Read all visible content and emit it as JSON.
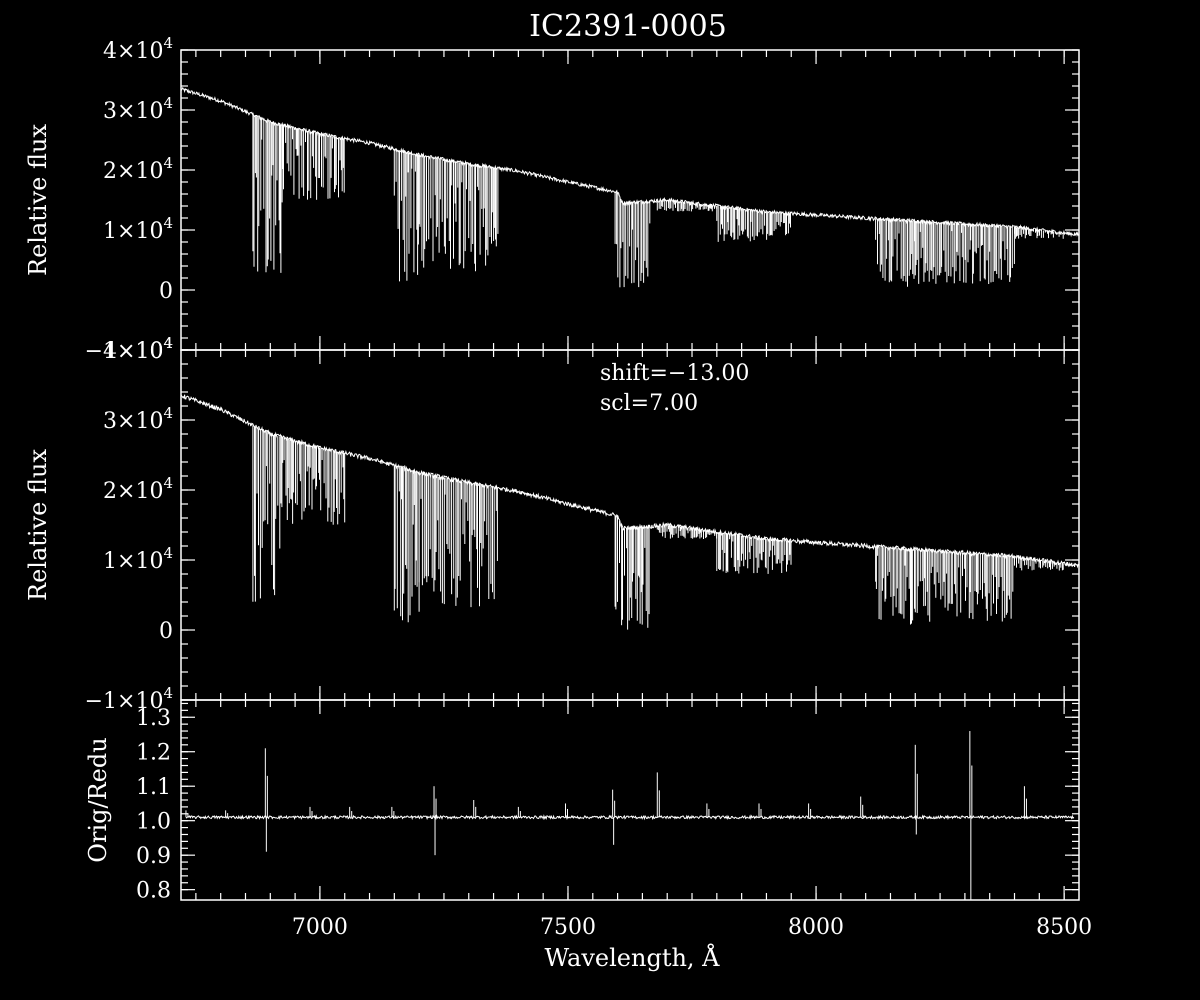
{
  "title": "IC2391-0005",
  "x_axis": {
    "label": "Wavelength, Å",
    "range": [
      6720,
      8530
    ],
    "ticks": [
      7000,
      7500,
      8000,
      8500
    ],
    "tick_labels": [
      "7000",
      "7500",
      "8000",
      "8500"
    ]
  },
  "panels": [
    {
      "id": "original",
      "ylabel": "Relative flux",
      "ylim": [
        -10000,
        40000
      ],
      "yticks": [
        -10000,
        0,
        10000,
        20000,
        30000,
        40000
      ],
      "ytick_mantissa": [
        "−1",
        "0",
        "1",
        "2",
        "3",
        "4"
      ],
      "ytick_exp": [
        "4",
        "",
        "4",
        "4",
        "4",
        "4"
      ]
    },
    {
      "id": "reduced",
      "ylabel": "Relative flux",
      "ylim": [
        -10000,
        40000
      ],
      "yticks": [
        -10000,
        0,
        10000,
        20000,
        30000,
        40000
      ],
      "ytick_mantissa": [
        "−1",
        "0",
        "1",
        "2",
        "3",
        "4"
      ],
      "ytick_exp": [
        "4",
        "",
        "4",
        "4",
        "4",
        "4"
      ],
      "annotations": [
        "shift=−13.00",
        "scl=7.00"
      ]
    },
    {
      "id": "ratio",
      "ylabel": "Orig/Redu",
      "ylim": [
        0.77,
        1.35
      ],
      "yticks": [
        0.8,
        0.9,
        1.0,
        1.1,
        1.2,
        1.3
      ],
      "ytick_labels": [
        "0.8",
        "0.9",
        "1.0",
        "1.1",
        "1.2",
        "1.3"
      ]
    }
  ],
  "chart_data": {
    "type": "line",
    "title": "IC2391-0005",
    "xlabel": "Wavelength, Å",
    "xlim": [
      6720,
      8530
    ],
    "series": [
      {
        "name": "",
        "panel": "original",
        "continuum": {
          "x": [
            6720,
            6800,
            6900,
            7000,
            7100,
            7200,
            7300,
            7400,
            7500,
            7600,
            7610,
            7700,
            7800,
            7900,
            8000,
            8100,
            8200,
            8300,
            8400,
            8500,
            8530
          ],
          "y": [
            33500,
            31500,
            28000,
            26000,
            24500,
            22500,
            21000,
            19800,
            18000,
            16300,
            14500,
            15000,
            14000,
            13000,
            12500,
            12000,
            11500,
            11000,
            10500,
            9500,
            9200
          ]
        },
        "absorption_bands": [
          {
            "start": 6865,
            "end": 6925,
            "min_y": 1000
          },
          {
            "start": 6925,
            "end": 7050,
            "min_y": 15000
          },
          {
            "start": 7150,
            "end": 7200,
            "min_y": 1000
          },
          {
            "start": 7200,
            "end": 7360,
            "min_y": 3000
          },
          {
            "start": 7595,
            "end": 7665,
            "min_y": 0
          },
          {
            "start": 7680,
            "end": 7800,
            "min_y": 13000
          },
          {
            "start": 7800,
            "end": 7950,
            "min_y": 8000
          },
          {
            "start": 8120,
            "end": 8200,
            "min_y": 500
          },
          {
            "start": 8200,
            "end": 8400,
            "min_y": 1000
          },
          {
            "start": 8400,
            "end": 8500,
            "min_y": 8500
          }
        ]
      },
      {
        "name": "",
        "panel": "reduced",
        "continuum": {
          "x": [
            6720,
            6800,
            6900,
            7000,
            7100,
            7200,
            7300,
            7400,
            7500,
            7600,
            7610,
            7700,
            7800,
            7900,
            8000,
            8100,
            8200,
            8300,
            8400,
            8500,
            8530
          ],
          "y": [
            33500,
            31500,
            28000,
            26000,
            24500,
            22500,
            21000,
            19800,
            18000,
            16300,
            14500,
            15000,
            14000,
            13000,
            12500,
            12000,
            11500,
            11000,
            10500,
            9500,
            9200
          ]
        },
        "absorption_bands": [
          {
            "start": 6865,
            "end": 6925,
            "min_y": 1000
          },
          {
            "start": 6925,
            "end": 7050,
            "min_y": 15000
          },
          {
            "start": 7150,
            "end": 7200,
            "min_y": 1000
          },
          {
            "start": 7200,
            "end": 7360,
            "min_y": 3000
          },
          {
            "start": 7595,
            "end": 7665,
            "min_y": 0
          },
          {
            "start": 7680,
            "end": 7800,
            "min_y": 13000
          },
          {
            "start": 7800,
            "end": 7950,
            "min_y": 8000
          },
          {
            "start": 8120,
            "end": 8200,
            "min_y": 500
          },
          {
            "start": 8200,
            "end": 8400,
            "min_y": 1000
          },
          {
            "start": 8400,
            "end": 8500,
            "min_y": 8500
          }
        ]
      },
      {
        "name": "",
        "panel": "ratio",
        "baseline": 1.01,
        "features": [
          {
            "x": 6730,
            "peak": 1.03
          },
          {
            "x": 6810,
            "peak": 1.03
          },
          {
            "x": 6890,
            "peak": 1.21,
            "trough": 0.91
          },
          {
            "x": 6980,
            "peak": 1.04
          },
          {
            "x": 7060,
            "peak": 1.04
          },
          {
            "x": 7145,
            "peak": 1.04
          },
          {
            "x": 7230,
            "peak": 1.1,
            "trough": 0.9
          },
          {
            "x": 7310,
            "peak": 1.06
          },
          {
            "x": 7400,
            "peak": 1.04
          },
          {
            "x": 7495,
            "peak": 1.05
          },
          {
            "x": 7590,
            "peak": 1.09,
            "trough": 0.93
          },
          {
            "x": 7680,
            "peak": 1.14
          },
          {
            "x": 7780,
            "peak": 1.05
          },
          {
            "x": 7885,
            "peak": 1.05
          },
          {
            "x": 7985,
            "peak": 1.05
          },
          {
            "x": 8090,
            "peak": 1.07
          },
          {
            "x": 8200,
            "peak": 1.22,
            "trough": 0.96
          },
          {
            "x": 8310,
            "peak": 1.26,
            "trough": 0.77
          },
          {
            "x": 8420,
            "peak": 1.1
          }
        ]
      }
    ]
  }
}
